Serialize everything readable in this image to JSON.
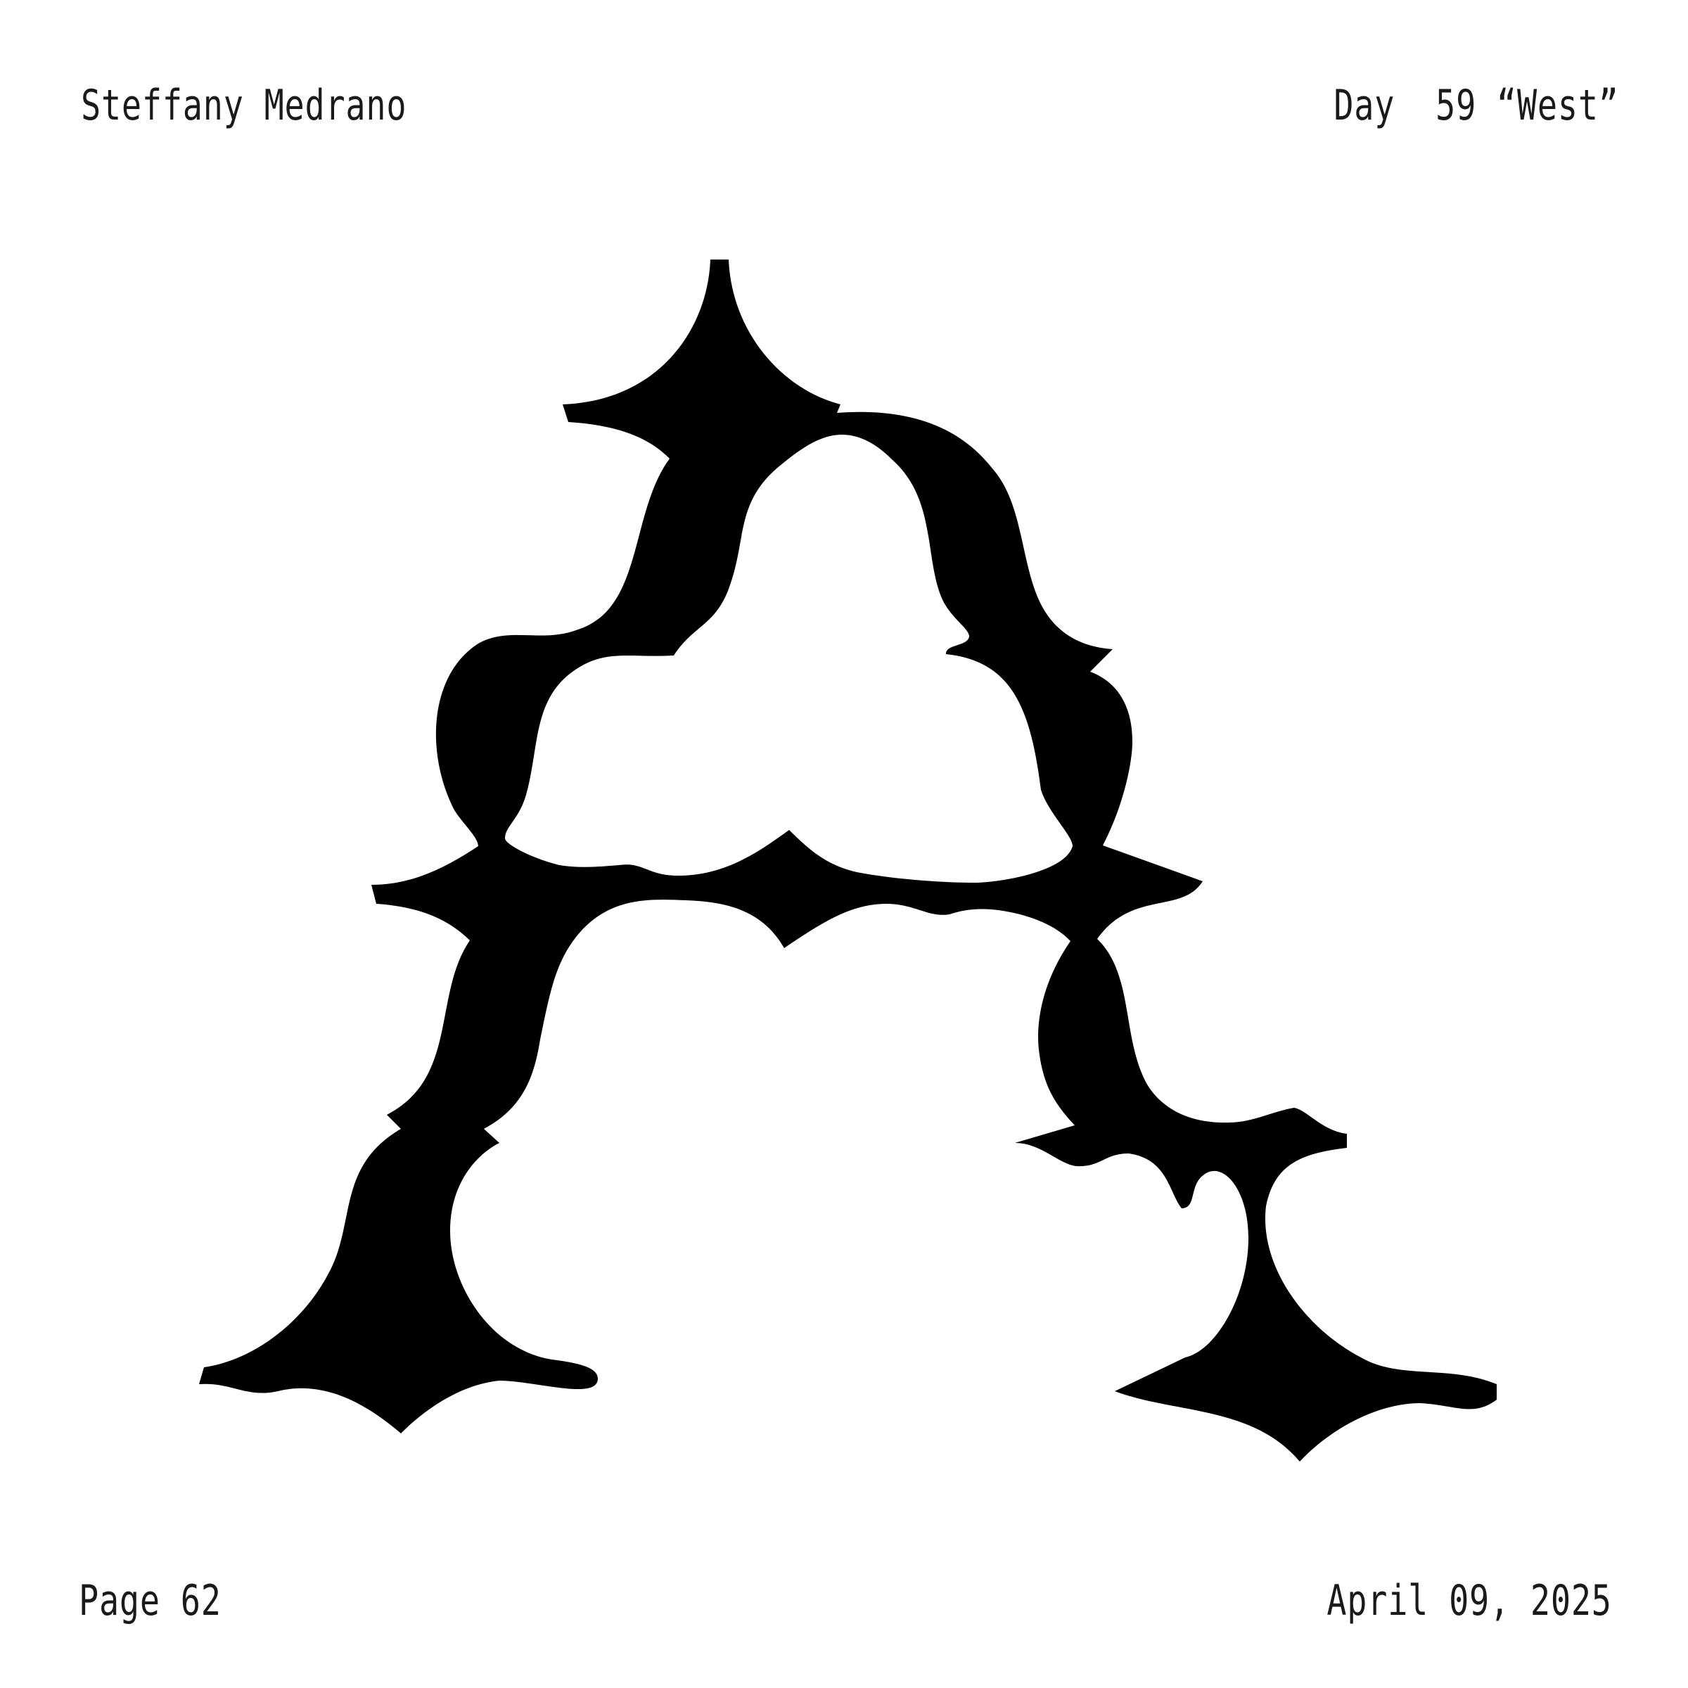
{
  "header": {
    "author": "Steffany Medrano",
    "day_label": "Day  59 “West”"
  },
  "footer": {
    "page_label": "Page 62",
    "date": "April 09, 2025"
  },
  "artwork": {
    "subject": "letter-a-glyph",
    "ink_color": "#000000",
    "paper_color": "#ffffff"
  }
}
